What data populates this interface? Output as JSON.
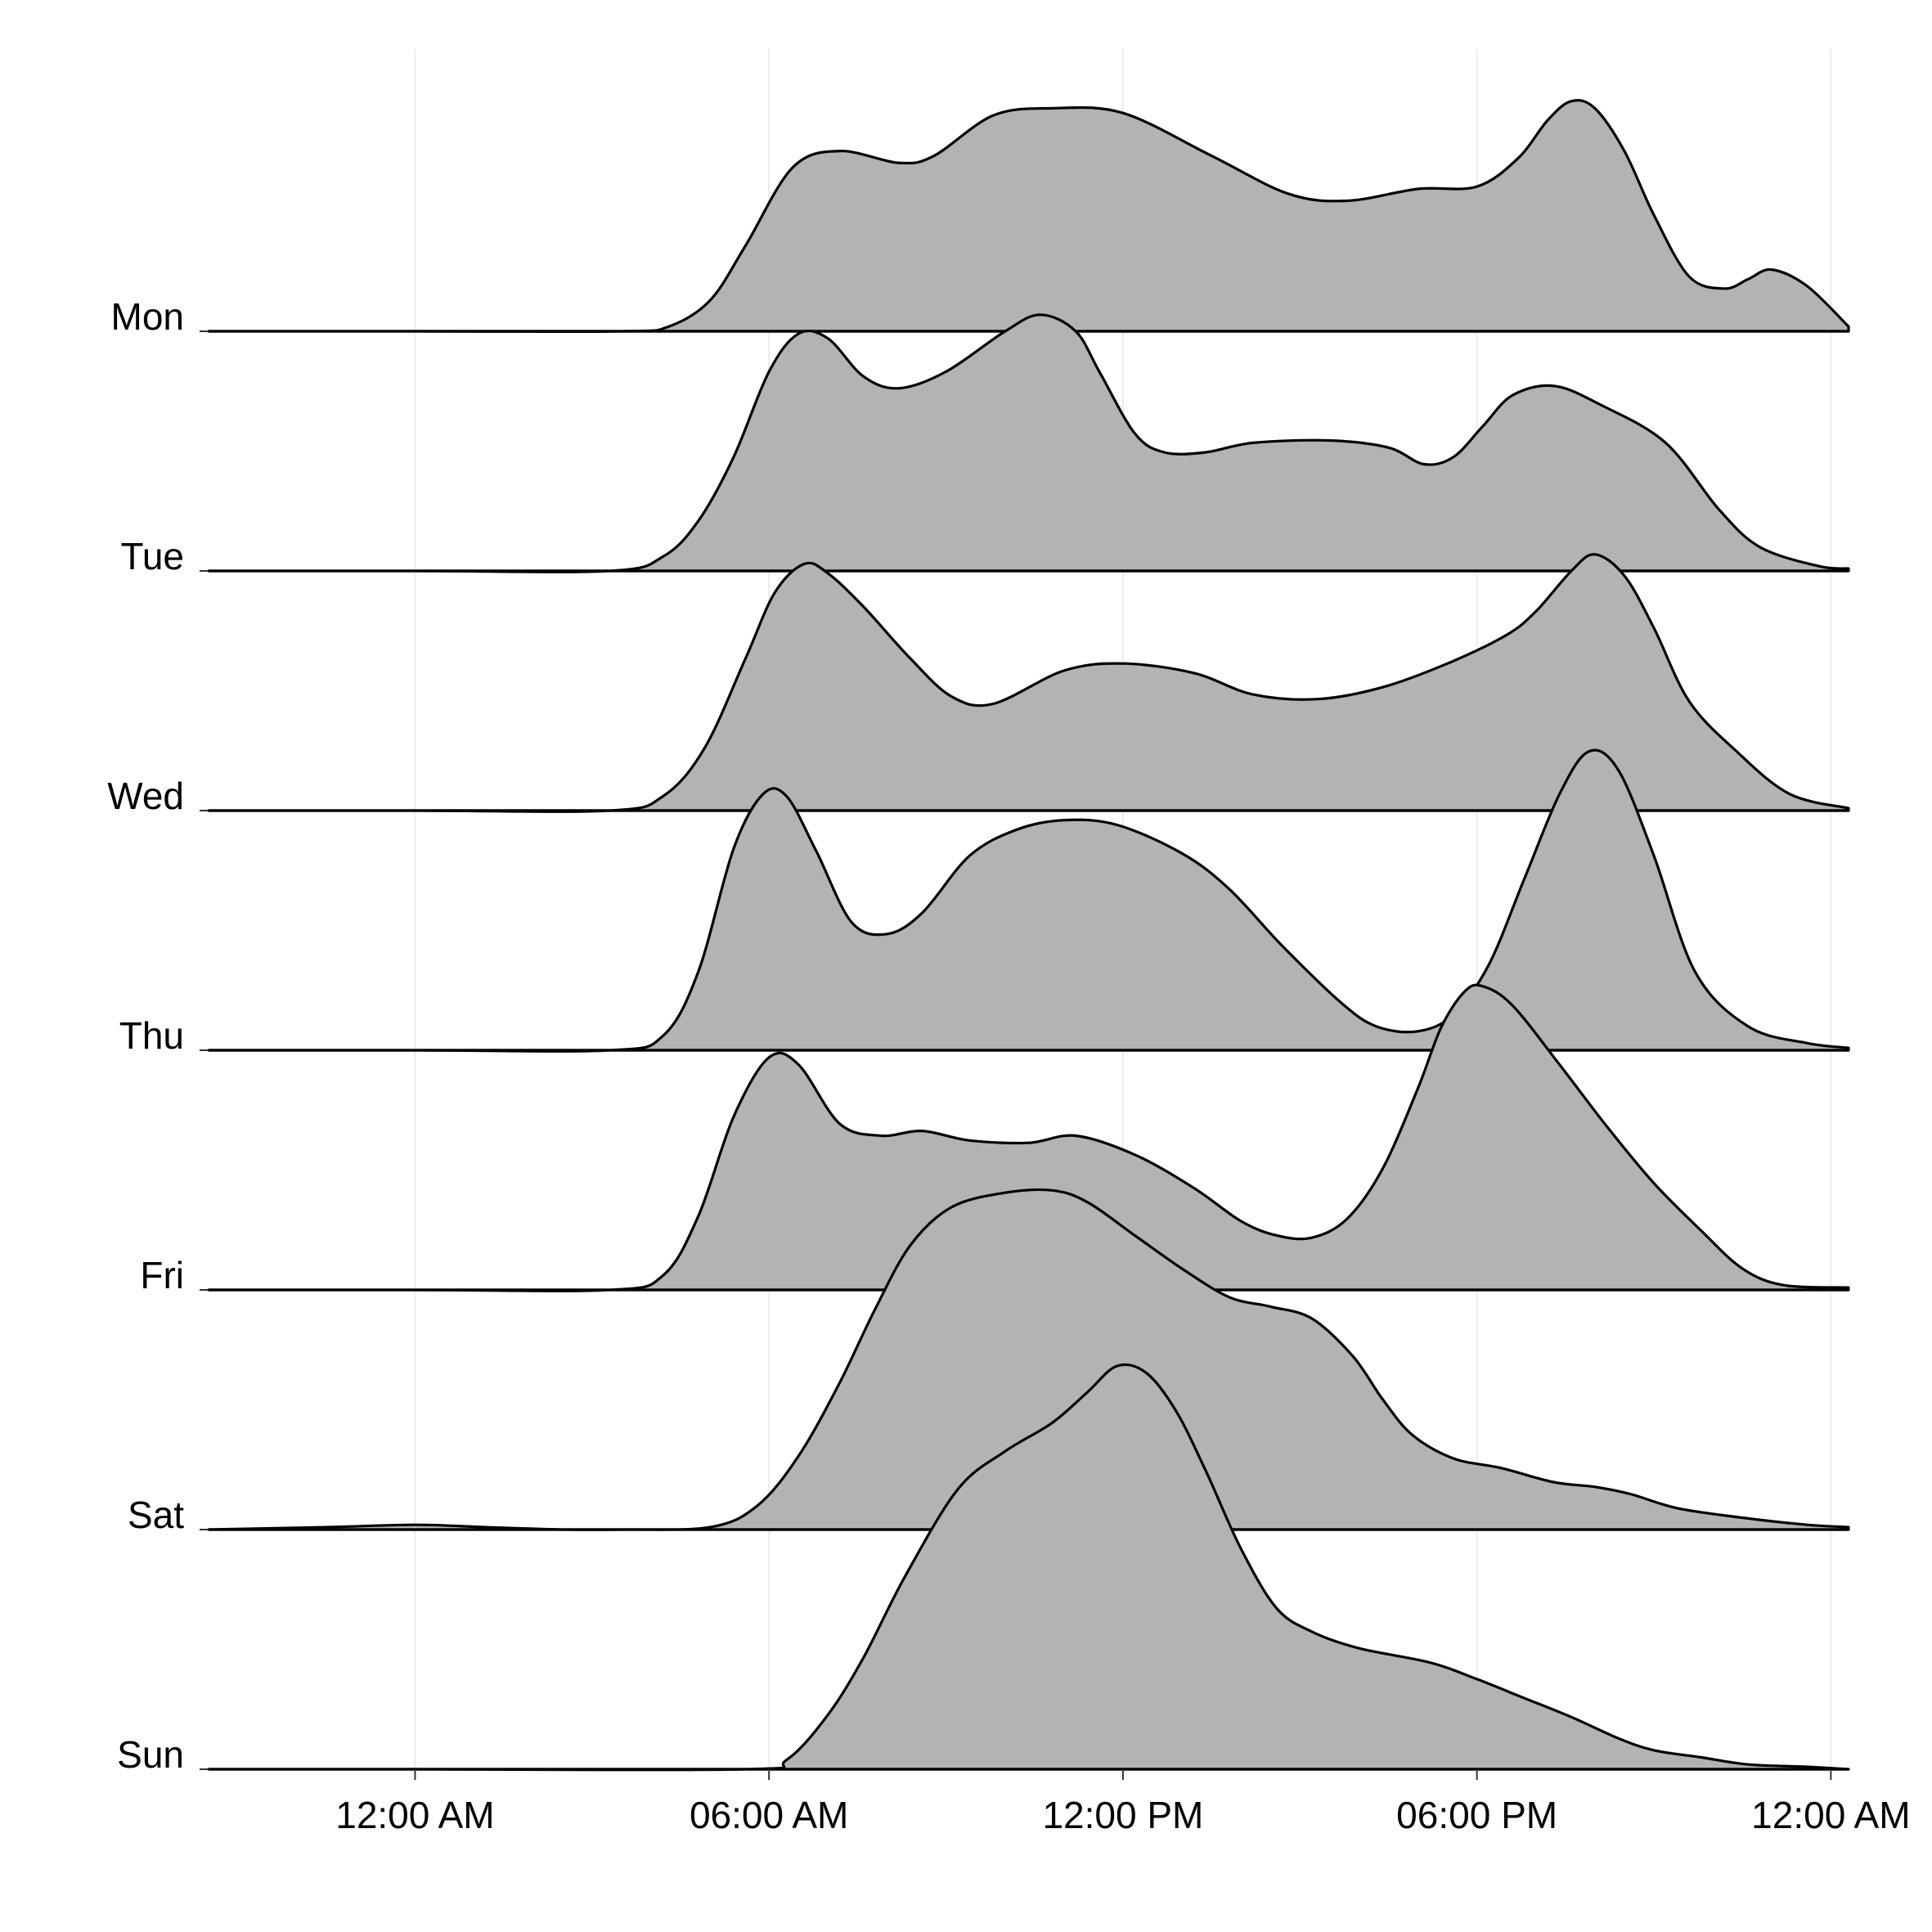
{
  "chart_data": {
    "type": "ridgeline",
    "title": "",
    "xlabel": "",
    "ylabel": "",
    "x_unit": "hours",
    "xlim": [
      -3.5,
      24.3
    ],
    "x_ticks": [
      {
        "value": 0,
        "label": "12:00 AM"
      },
      {
        "value": 6,
        "label": "06:00 AM"
      },
      {
        "value": 12,
        "label": "12:00 PM"
      },
      {
        "value": 18,
        "label": "06:00 PM"
      },
      {
        "value": 24,
        "label": "12:00 AM"
      }
    ],
    "colors": {
      "fill": "#b3b3b3",
      "outline": "#000000",
      "background": "#ffffff"
    },
    "series": [
      {
        "name": "Mon",
        "points": [
          [
            -3.5,
            0
          ],
          [
            0,
            0
          ],
          [
            3.5,
            0
          ],
          [
            4.3,
            0.02
          ],
          [
            5,
            0.13
          ],
          [
            5.6,
            0.36
          ],
          [
            6.4,
            0.69
          ],
          [
            7.2,
            0.76
          ],
          [
            8.2,
            0.71
          ],
          [
            8.8,
            0.74
          ],
          [
            9.8,
            0.91
          ],
          [
            10.8,
            0.94
          ],
          [
            12,
            0.92
          ],
          [
            13.5,
            0.74
          ],
          [
            14.8,
            0.58
          ],
          [
            15.8,
            0.55
          ],
          [
            17,
            0.6
          ],
          [
            18,
            0.61
          ],
          [
            18.7,
            0.73
          ],
          [
            19.2,
            0.89
          ],
          [
            19.6,
            0.97
          ],
          [
            20,
            0.94
          ],
          [
            20.5,
            0.76
          ],
          [
            21,
            0.49
          ],
          [
            21.6,
            0.23
          ],
          [
            22.2,
            0.18
          ],
          [
            22.6,
            0.22
          ],
          [
            23,
            0.26
          ],
          [
            23.6,
            0.19
          ],
          [
            24.3,
            0.02
          ]
        ]
      },
      {
        "name": "Tue",
        "points": [
          [
            -3.5,
            0
          ],
          [
            0,
            0
          ],
          [
            3.3,
            0
          ],
          [
            4.2,
            0.06
          ],
          [
            4.8,
            0.21
          ],
          [
            5.4,
            0.48
          ],
          [
            6.0,
            0.84
          ],
          [
            6.5,
            1.0
          ],
          [
            7.0,
            0.98
          ],
          [
            7.6,
            0.82
          ],
          [
            8.2,
            0.77
          ],
          [
            9.0,
            0.84
          ],
          [
            10.0,
            1.01
          ],
          [
            10.6,
            1.08
          ],
          [
            11.2,
            1.01
          ],
          [
            11.6,
            0.84
          ],
          [
            12.2,
            0.58
          ],
          [
            12.7,
            0.5
          ],
          [
            13.4,
            0.5
          ],
          [
            14.2,
            0.54
          ],
          [
            15.5,
            0.55
          ],
          [
            16.5,
            0.52
          ],
          [
            17.1,
            0.45
          ],
          [
            17.6,
            0.48
          ],
          [
            18.1,
            0.61
          ],
          [
            18.6,
            0.74
          ],
          [
            19.3,
            0.78
          ],
          [
            20.1,
            0.7
          ],
          [
            21.2,
            0.54
          ],
          [
            22.1,
            0.26
          ],
          [
            22.8,
            0.1
          ],
          [
            23.8,
            0.02
          ],
          [
            24.3,
            0.01
          ]
        ]
      },
      {
        "name": "Wed",
        "points": [
          [
            -3.5,
            0
          ],
          [
            0,
            0
          ],
          [
            3.3,
            0
          ],
          [
            4.2,
            0.06
          ],
          [
            4.9,
            0.26
          ],
          [
            5.6,
            0.64
          ],
          [
            6.1,
            0.92
          ],
          [
            6.6,
            1.04
          ],
          [
            7.0,
            1.0
          ],
          [
            7.6,
            0.86
          ],
          [
            8.4,
            0.64
          ],
          [
            9.1,
            0.48
          ],
          [
            9.8,
            0.45
          ],
          [
            11.0,
            0.59
          ],
          [
            12.0,
            0.62
          ],
          [
            13.2,
            0.58
          ],
          [
            14.2,
            0.49
          ],
          [
            15.3,
            0.47
          ],
          [
            16.4,
            0.52
          ],
          [
            17.5,
            0.62
          ],
          [
            18.5,
            0.74
          ],
          [
            19.0,
            0.84
          ],
          [
            19.6,
            1.01
          ],
          [
            20.0,
            1.08
          ],
          [
            20.5,
            0.99
          ],
          [
            21.0,
            0.77
          ],
          [
            21.6,
            0.46
          ],
          [
            22.4,
            0.25
          ],
          [
            23.3,
            0.07
          ],
          [
            24.3,
            0.01
          ]
        ]
      },
      {
        "name": "Thu",
        "points": [
          [
            -3.5,
            0
          ],
          [
            0,
            0
          ],
          [
            3.3,
            0
          ],
          [
            4.2,
            0.06
          ],
          [
            4.8,
            0.33
          ],
          [
            5.4,
            0.85
          ],
          [
            5.9,
            1.08
          ],
          [
            6.3,
            1.07
          ],
          [
            6.8,
            0.84
          ],
          [
            7.4,
            0.54
          ],
          [
            8.0,
            0.49
          ],
          [
            8.6,
            0.58
          ],
          [
            9.4,
            0.82
          ],
          [
            10.2,
            0.93
          ],
          [
            11.0,
            0.97
          ],
          [
            11.9,
            0.95
          ],
          [
            13.0,
            0.83
          ],
          [
            13.8,
            0.68
          ],
          [
            14.7,
            0.44
          ],
          [
            15.7,
            0.2
          ],
          [
            16.3,
            0.1
          ],
          [
            17.0,
            0.08
          ],
          [
            17.6,
            0.15
          ],
          [
            18.2,
            0.36
          ],
          [
            18.8,
            0.72
          ],
          [
            19.4,
            1.08
          ],
          [
            19.9,
            1.26
          ],
          [
            20.4,
            1.18
          ],
          [
            21.0,
            0.82
          ],
          [
            21.7,
            0.33
          ],
          [
            22.6,
            0.1
          ],
          [
            23.6,
            0.03
          ],
          [
            24.3,
            0.01
          ]
        ]
      },
      {
        "name": "Fri",
        "points": [
          [
            -3.5,
            0
          ],
          [
            0,
            0
          ],
          [
            3.3,
            0
          ],
          [
            4.2,
            0.06
          ],
          [
            4.8,
            0.31
          ],
          [
            5.4,
            0.73
          ],
          [
            6.0,
            0.98
          ],
          [
            6.5,
            0.95
          ],
          [
            7.2,
            0.7
          ],
          [
            7.9,
            0.65
          ],
          [
            8.6,
            0.67
          ],
          [
            9.4,
            0.63
          ],
          [
            10.4,
            0.62
          ],
          [
            11.2,
            0.65
          ],
          [
            12.2,
            0.57
          ],
          [
            13.2,
            0.43
          ],
          [
            14.0,
            0.29
          ],
          [
            14.6,
            0.23
          ],
          [
            15.2,
            0.22
          ],
          [
            15.8,
            0.3
          ],
          [
            16.4,
            0.51
          ],
          [
            17.0,
            0.85
          ],
          [
            17.4,
            1.11
          ],
          [
            17.8,
            1.26
          ],
          [
            18.1,
            1.28
          ],
          [
            18.6,
            1.2
          ],
          [
            19.4,
            0.95
          ],
          [
            20.2,
            0.69
          ],
          [
            21.0,
            0.45
          ],
          [
            21.8,
            0.25
          ],
          [
            22.5,
            0.09
          ],
          [
            23.2,
            0.02
          ],
          [
            24.3,
            0.01
          ]
        ]
      },
      {
        "name": "Sat",
        "points": [
          [
            -3.5,
            0
          ],
          [
            -1.5,
            0.01
          ],
          [
            0,
            0.02
          ],
          [
            1.2,
            0.01
          ],
          [
            2.5,
            0.0
          ],
          [
            3.5,
            0.0
          ],
          [
            5.0,
            0.01
          ],
          [
            5.8,
            0.1
          ],
          [
            6.5,
            0.31
          ],
          [
            7.2,
            0.62
          ],
          [
            7.8,
            0.93
          ],
          [
            8.4,
            1.2
          ],
          [
            9.1,
            1.36
          ],
          [
            10.0,
            1.42
          ],
          [
            10.8,
            1.43
          ],
          [
            11.4,
            1.38
          ],
          [
            12.2,
            1.24
          ],
          [
            13.0,
            1.1
          ],
          [
            13.8,
            0.98
          ],
          [
            14.5,
            0.94
          ],
          [
            15.2,
            0.89
          ],
          [
            15.9,
            0.73
          ],
          [
            16.4,
            0.55
          ],
          [
            16.9,
            0.4
          ],
          [
            17.6,
            0.3
          ],
          [
            18.4,
            0.26
          ],
          [
            19.3,
            0.2
          ],
          [
            20.0,
            0.18
          ],
          [
            20.6,
            0.15
          ],
          [
            21.4,
            0.09
          ],
          [
            22.5,
            0.05
          ],
          [
            23.6,
            0.02
          ],
          [
            24.3,
            0.01
          ]
        ]
      },
      {
        "name": "Sun",
        "points": [
          [
            -3.5,
            0
          ],
          [
            0,
            0
          ],
          [
            5.6,
            0
          ],
          [
            6.3,
            0.04
          ],
          [
            7.0,
            0.23
          ],
          [
            7.6,
            0.47
          ],
          [
            8.3,
            0.81
          ],
          [
            9.2,
            1.18
          ],
          [
            10.0,
            1.34
          ],
          [
            10.8,
            1.46
          ],
          [
            11.4,
            1.59
          ],
          [
            11.9,
            1.7
          ],
          [
            12.4,
            1.67
          ],
          [
            12.9,
            1.51
          ],
          [
            13.4,
            1.26
          ],
          [
            14.0,
            0.93
          ],
          [
            14.6,
            0.68
          ],
          [
            15.2,
            0.58
          ],
          [
            16.0,
            0.51
          ],
          [
            17.2,
            0.45
          ],
          [
            18.0,
            0.38
          ],
          [
            18.8,
            0.3
          ],
          [
            19.6,
            0.22
          ],
          [
            20.4,
            0.13
          ],
          [
            21.0,
            0.08
          ],
          [
            21.8,
            0.05
          ],
          [
            22.6,
            0.02
          ],
          [
            23.6,
            0.01
          ],
          [
            24.3,
            0.0
          ]
        ]
      }
    ]
  }
}
